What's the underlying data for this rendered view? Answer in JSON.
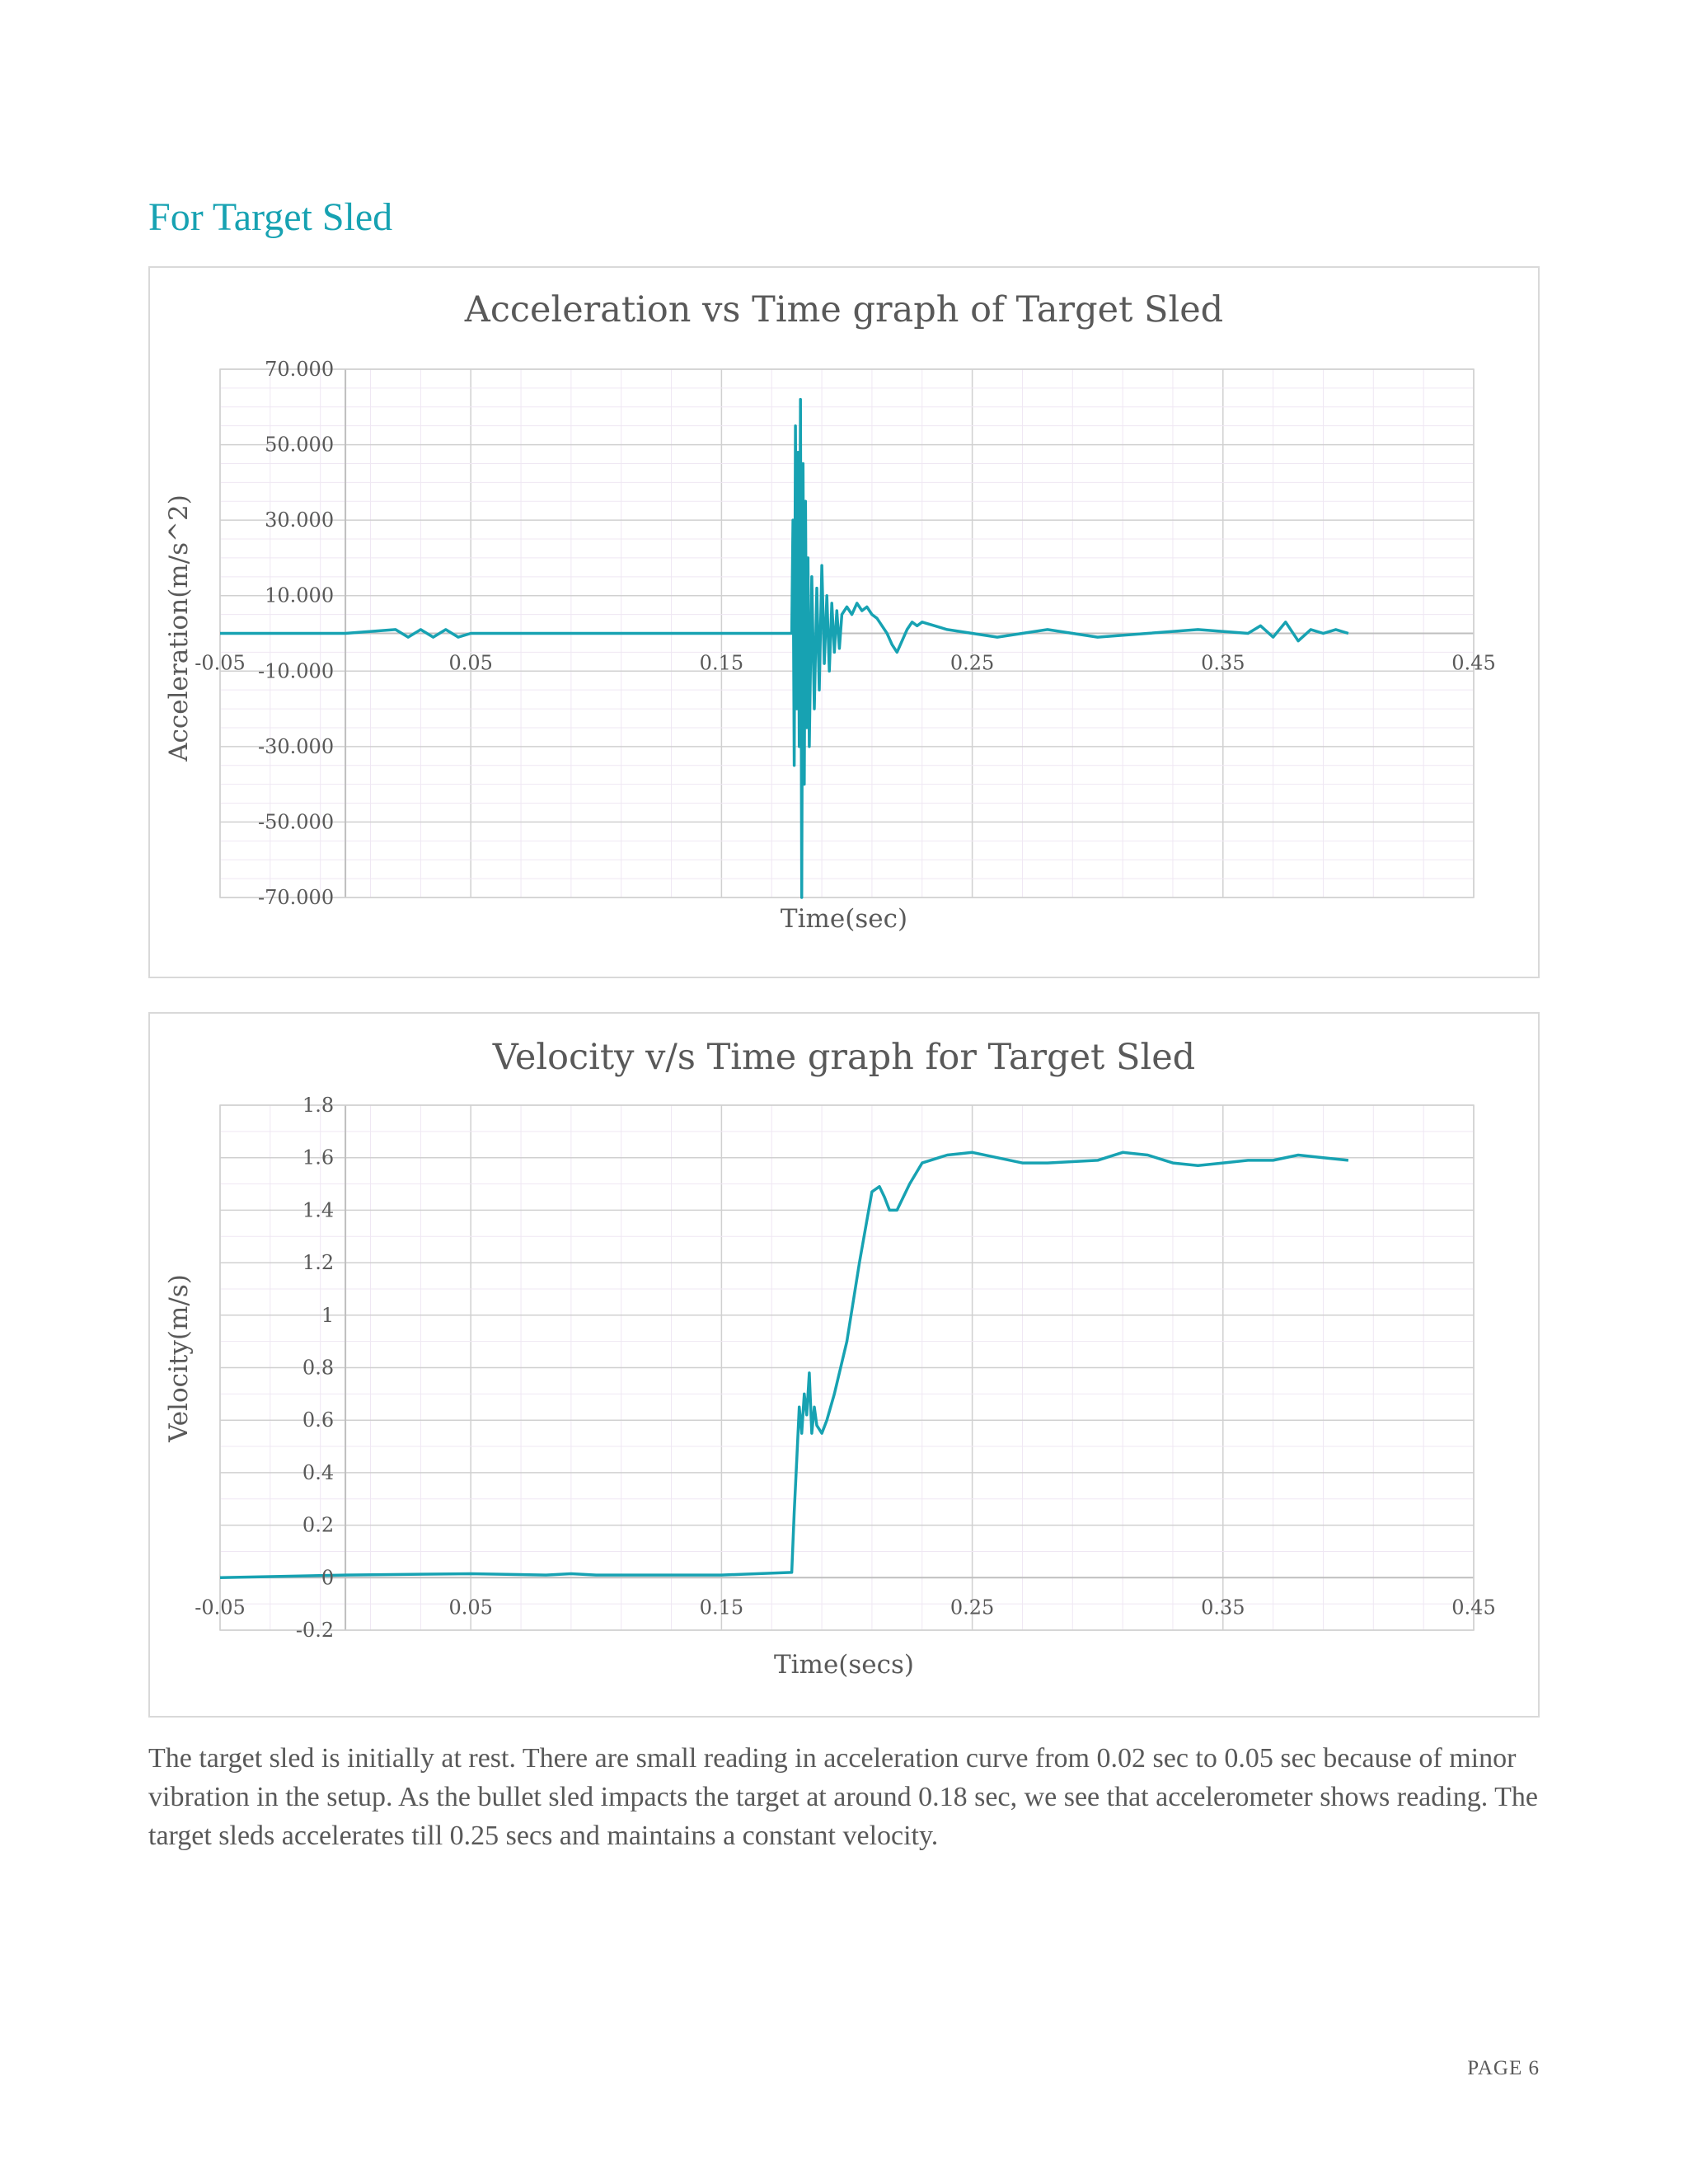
{
  "heading": "For Target Sled",
  "chart_data": [
    {
      "type": "line",
      "title": "Acceleration vs Time graph of Target Sled",
      "xlabel": "Time(sec)",
      "ylabel": "Acceleration(m/s^2)",
      "xlim": [
        -0.05,
        0.45
      ],
      "ylim": [
        -70,
        70
      ],
      "x_ticks": [
        "-0.05",
        "0.05",
        "0.15",
        "0.25",
        "0.35",
        "0.45"
      ],
      "y_ticks": [
        "70.000",
        "50.000",
        "30.000",
        "10.000",
        "-10.000",
        "-30.000",
        "-50.000",
        "-70.000"
      ],
      "grid": true,
      "legend": "none",
      "series_color": "#17a2b2",
      "series": [
        {
          "x": [
            -0.05,
            0.0,
            0.02,
            0.025,
            0.03,
            0.035,
            0.04,
            0.045,
            0.05,
            0.1,
            0.15,
            0.178,
            0.1785,
            0.179,
            0.1795,
            0.18,
            0.1805,
            0.181,
            0.1815,
            0.182,
            0.1825,
            0.183,
            0.1835,
            0.184,
            0.1845,
            0.185,
            0.186,
            0.187,
            0.188,
            0.189,
            0.19,
            0.191,
            0.192,
            0.193,
            0.194,
            0.195,
            0.196,
            0.197,
            0.198,
            0.2,
            0.202,
            0.204,
            0.206,
            0.208,
            0.21,
            0.212,
            0.214,
            0.216,
            0.218,
            0.22,
            0.222,
            0.224,
            0.226,
            0.228,
            0.23,
            0.235,
            0.24,
            0.25,
            0.26,
            0.27,
            0.28,
            0.3,
            0.32,
            0.34,
            0.36,
            0.365,
            0.37,
            0.375,
            0.38,
            0.385,
            0.39,
            0.395,
            0.4
          ],
          "y": [
            0,
            0,
            1,
            -1,
            1,
            -1,
            1,
            -1,
            0,
            0,
            0,
            0,
            30,
            -35,
            55,
            -20,
            48,
            -30,
            62,
            -70,
            45,
            -40,
            35,
            -25,
            20,
            -30,
            15,
            -20,
            12,
            -15,
            18,
            -8,
            10,
            -10,
            8,
            -5,
            6,
            -4,
            5,
            7,
            5,
            8,
            6,
            7,
            5,
            4,
            2,
            0,
            -3,
            -5,
            -2,
            1,
            3,
            2,
            3,
            2,
            1,
            0,
            -1,
            0,
            1,
            -1,
            0,
            1,
            0,
            2,
            -1,
            3,
            -2,
            1,
            0,
            1,
            0
          ]
        }
      ]
    },
    {
      "type": "line",
      "title": "Velocity v/s Time graph for Target Sled",
      "xlabel": "Time(secs)",
      "ylabel": "Velocity(m/s)",
      "xlim": [
        -0.05,
        0.45
      ],
      "ylim": [
        -0.2,
        1.8
      ],
      "x_ticks": [
        "-0.05",
        "0.05",
        "0.15",
        "0.25",
        "0.35",
        "0.45"
      ],
      "y_ticks": [
        "1.8",
        "1.6",
        "1.4",
        "1.2",
        "1",
        "0.8",
        "0.6",
        "0.4",
        "0.2",
        "0",
        "-0.2"
      ],
      "grid": true,
      "legend": "none",
      "series_color": "#17a2b2",
      "series": [
        {
          "x": [
            -0.05,
            0.0,
            0.05,
            0.08,
            0.09,
            0.1,
            0.15,
            0.178,
            0.179,
            0.18,
            0.181,
            0.182,
            0.183,
            0.184,
            0.185,
            0.186,
            0.187,
            0.188,
            0.19,
            0.192,
            0.195,
            0.2,
            0.205,
            0.21,
            0.213,
            0.215,
            0.217,
            0.22,
            0.225,
            0.23,
            0.24,
            0.25,
            0.26,
            0.27,
            0.28,
            0.3,
            0.31,
            0.32,
            0.33,
            0.34,
            0.35,
            0.36,
            0.37,
            0.38,
            0.39,
            0.4
          ],
          "y": [
            0.0,
            0.01,
            0.015,
            0.01,
            0.015,
            0.01,
            0.01,
            0.02,
            0.25,
            0.45,
            0.65,
            0.55,
            0.7,
            0.62,
            0.78,
            0.55,
            0.65,
            0.58,
            0.55,
            0.6,
            0.7,
            0.9,
            1.2,
            1.47,
            1.49,
            1.45,
            1.4,
            1.4,
            1.5,
            1.58,
            1.61,
            1.62,
            1.6,
            1.58,
            1.58,
            1.59,
            1.62,
            1.61,
            1.58,
            1.57,
            1.58,
            1.59,
            1.59,
            1.61,
            1.6,
            1.59
          ]
        }
      ]
    }
  ],
  "body_text": "The target sled is initially at rest. There are small reading in acceleration curve from 0.02 sec to 0.05 sec because of minor vibration in the setup. As the bullet sled impacts the target at around 0.18 sec, we see that accelerometer shows reading. The target sleds accelerates till 0.25 secs and maintains a constant velocity.",
  "page_number": "PAGE 6"
}
